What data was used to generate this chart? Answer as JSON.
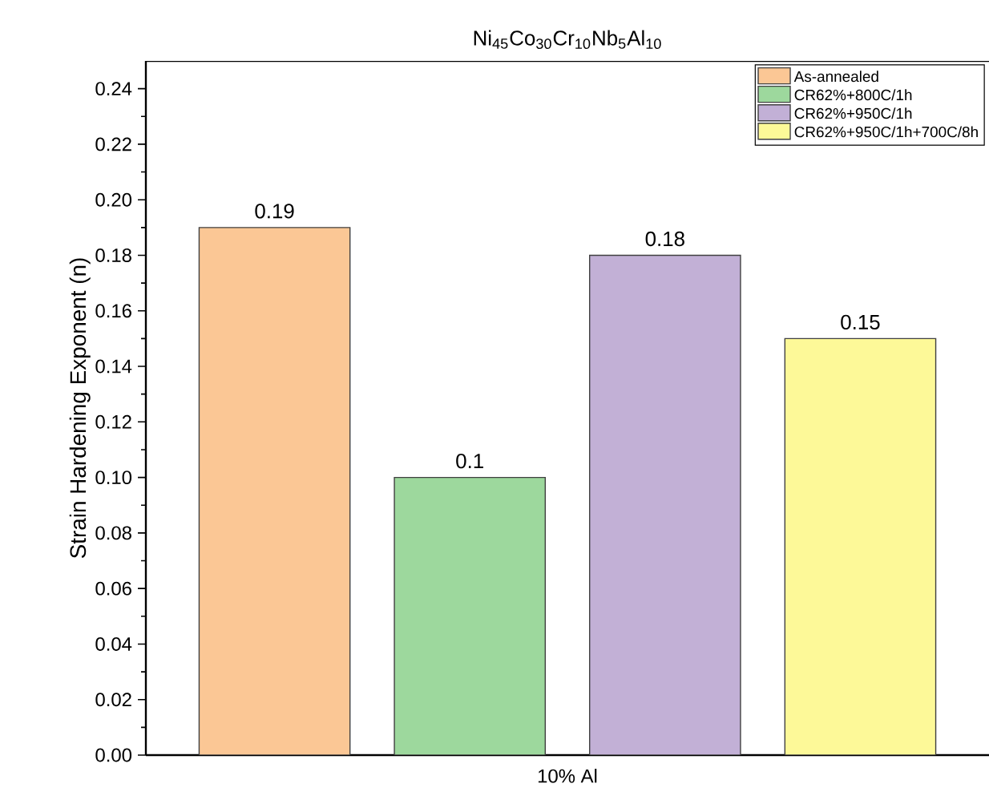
{
  "chart_data": {
    "type": "bar",
    "title": "Ni$_{45}$Co$_{30}$Cr$_{10}$Nb$_{5}$Al$_{10}$",
    "ylabel": "Strain Hardening Exponent (n)",
    "categories": [
      "10% Al"
    ],
    "series": [
      {
        "name": "As-annealed",
        "color": "#fbc795",
        "values": [
          0.19
        ]
      },
      {
        "name": "CR62%+800C/1h",
        "color": "#9dd89d",
        "values": [
          0.1
        ]
      },
      {
        "name": "CR62%+950C/1h",
        "color": "#c2b0d6",
        "values": [
          0.18
        ]
      },
      {
        "name": "CR62%+950C/1h+700C/8h",
        "color": "#fdf998",
        "values": [
          0.15
        ]
      }
    ],
    "ylim": [
      0,
      0.25
    ],
    "yticks": [
      {
        "value": 0,
        "label": "0.00"
      },
      {
        "value": 0.02,
        "label": "0.02"
      },
      {
        "value": 0.04,
        "label": "0.04"
      },
      {
        "value": 0.06,
        "label": "0.06"
      },
      {
        "value": 0.08,
        "label": "0.08"
      },
      {
        "value": 0.1,
        "label": "0.10"
      },
      {
        "value": 0.12,
        "label": "0.12"
      },
      {
        "value": 0.14,
        "label": "0.14"
      },
      {
        "value": 0.16,
        "label": "0.16"
      },
      {
        "value": 0.18,
        "label": "0.18"
      },
      {
        "value": 0.2,
        "label": "0.20"
      },
      {
        "value": 0.22,
        "label": "0.22"
      },
      {
        "value": 0.24,
        "label": "0.24"
      }
    ],
    "data_labels": true,
    "legend": "top right"
  }
}
